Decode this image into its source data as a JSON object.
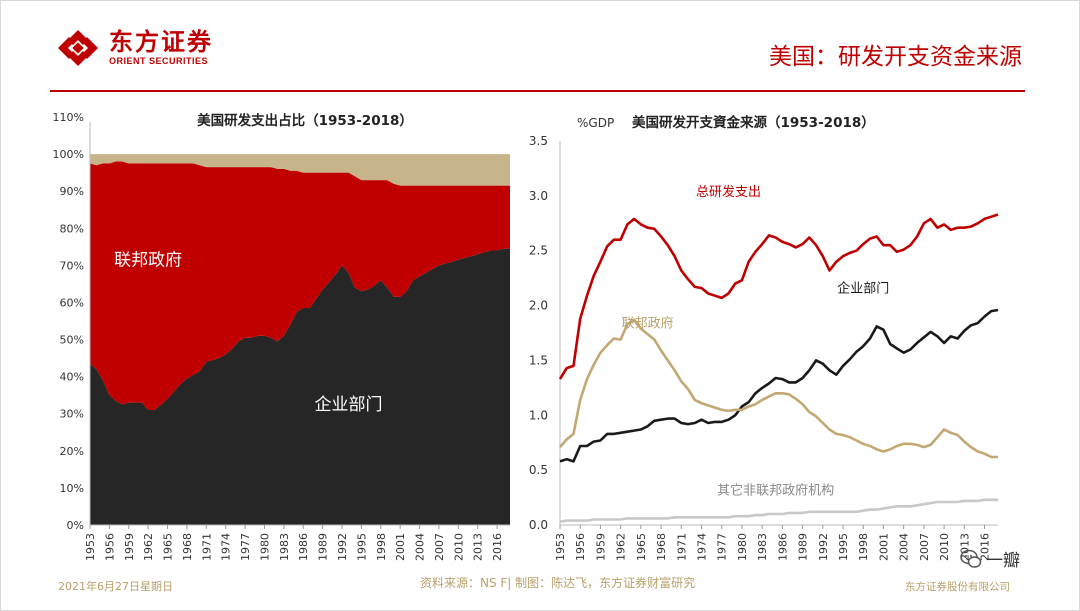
{
  "logo": {
    "cn": "东方证券",
    "en": "ORIENT SECURITIES"
  },
  "page_title": "美国：研发开支资金来源",
  "footer": {
    "date": "2021年6月27日星期日",
    "source": "资料来源：NS F| 制图：陈达飞，东方证券财富研究",
    "company": "东方证券股份有限公司"
  },
  "watermark": {
    "text": "一瓣"
  },
  "colors": {
    "brand_red": "#c00000",
    "federal_red": "#c00000",
    "business_black": "#262626",
    "other_tan": "#c8b48a",
    "federal_line": "#c2a872",
    "other_line": "#c8c8c8",
    "footer_tan": "#b8a06a"
  },
  "chart_data": [
    {
      "type": "area",
      "stacked": true,
      "title": "美国研发支出占比（1953-2018）",
      "xlabel": "",
      "ylabel": "",
      "ylim": [
        0,
        110
      ],
      "y_ticks": [
        "0%",
        "10%",
        "20%",
        "30%",
        "40%",
        "50%",
        "60%",
        "70%",
        "80%",
        "90%",
        "100%",
        "110%"
      ],
      "x_ticks": [
        "1953",
        "1956",
        "1959",
        "1962",
        "1965",
        "1968",
        "1971",
        "1974",
        "1977",
        "1980",
        "1983",
        "1986",
        "1989",
        "1992",
        "1995",
        "1998",
        "2001",
        "2004",
        "2007",
        "2010",
        "2013",
        "2016"
      ],
      "x": [
        1953,
        1954,
        1955,
        1956,
        1957,
        1958,
        1959,
        1960,
        1961,
        1962,
        1963,
        1964,
        1965,
        1966,
        1967,
        1968,
        1969,
        1970,
        1971,
        1972,
        1973,
        1974,
        1975,
        1976,
        1977,
        1978,
        1979,
        1980,
        1981,
        1982,
        1983,
        1984,
        1985,
        1986,
        1987,
        1988,
        1989,
        1990,
        1991,
        1992,
        1993,
        1994,
        1995,
        1996,
        1997,
        1998,
        1999,
        2000,
        2001,
        2002,
        2003,
        2004,
        2005,
        2006,
        2007,
        2008,
        2009,
        2010,
        2011,
        2012,
        2013,
        2014,
        2015,
        2016,
        2017,
        2018
      ],
      "series": [
        {
          "name": "企业部门",
          "values": [
            43.5,
            42,
            39,
            35,
            33.5,
            32.5,
            33,
            33,
            33,
            31,
            31,
            32.5,
            34,
            36,
            38,
            39.5,
            40.5,
            41.5,
            44,
            44.5,
            45,
            46,
            47.5,
            49.5,
            50.5,
            50.5,
            51,
            51,
            50.5,
            49.5,
            51,
            54,
            57.5,
            58.5,
            58.5,
            61,
            63.5,
            65.5,
            67.5,
            70,
            68,
            64,
            63,
            63.5,
            64.5,
            66,
            64,
            61.5,
            61.5,
            63,
            66,
            67,
            68,
            69,
            70,
            70.5,
            71,
            71.5,
            72,
            72.5,
            73,
            73.5,
            74,
            74,
            74.5,
            74.5
          ]
        },
        {
          "name": "联邦政府",
          "values": [
            54,
            55,
            58.5,
            62.5,
            64.5,
            65.5,
            64.5,
            64.5,
            64.5,
            66.5,
            66.5,
            65,
            63.5,
            61.5,
            59.5,
            58,
            57,
            55.5,
            52.5,
            52,
            51.5,
            50.5,
            49,
            47,
            46,
            46,
            45.5,
            45.5,
            46,
            46.5,
            45,
            41.5,
            38,
            36.5,
            36.5,
            34,
            31.5,
            29.5,
            27.5,
            25,
            27,
            30,
            30,
            29.5,
            28.5,
            27,
            29,
            30.5,
            30,
            28.5,
            25.5,
            24.5,
            23.5,
            22.5,
            21.5,
            21,
            20.5,
            20,
            19.5,
            19,
            18.5,
            18,
            17.5,
            17.5,
            17,
            17
          ]
        },
        {
          "name": "其它",
          "values": [
            2.5,
            3,
            2.5,
            2.5,
            2,
            2,
            2.5,
            2.5,
            2.5,
            2.5,
            2.5,
            2.5,
            2.5,
            2.5,
            2.5,
            2.5,
            2.5,
            3,
            3.5,
            3.5,
            3.5,
            3.5,
            3.5,
            3.5,
            3.5,
            3.5,
            3.5,
            3.5,
            3.5,
            4,
            4,
            4.5,
            4.5,
            5,
            5,
            5,
            5,
            5,
            5,
            5,
            5,
            6,
            7,
            7,
            7,
            7,
            7,
            8,
            8.5,
            8.5,
            8.5,
            8.5,
            8.5,
            8.5,
            8.5,
            8.5,
            8.5,
            8.5,
            8.5,
            8.5,
            8.5,
            8.5,
            8.5,
            8.5,
            8.5,
            8.5
          ]
        }
      ],
      "annotations": [
        {
          "text": "联邦政府",
          "x": 1962,
          "y": 70
        },
        {
          "text": "企业部门",
          "x": 1993,
          "y": 31
        }
      ]
    },
    {
      "type": "line",
      "title": "美国研发开支資金来源（1953-2018）",
      "ylabel": "%GDP",
      "xlabel": "",
      "ylim": [
        0,
        3.5
      ],
      "y_ticks": [
        "0.0",
        "0.5",
        "1.0",
        "1.5",
        "2.0",
        "2.5",
        "3.0",
        "3.5"
      ],
      "x_ticks": [
        "1953",
        "1956",
        "1959",
        "1962",
        "1965",
        "1968",
        "1971",
        "1974",
        "1977",
        "1980",
        "1983",
        "1986",
        "1989",
        "1992",
        "1995",
        "1998",
        "2001",
        "2004",
        "2007",
        "2010",
        "2013",
        "2016"
      ],
      "x": [
        1953,
        1954,
        1955,
        1956,
        1957,
        1958,
        1959,
        1960,
        1961,
        1962,
        1963,
        1964,
        1965,
        1966,
        1967,
        1968,
        1969,
        1970,
        1971,
        1972,
        1973,
        1974,
        1975,
        1976,
        1977,
        1978,
        1979,
        1980,
        1981,
        1982,
        1983,
        1984,
        1985,
        1986,
        1987,
        1988,
        1989,
        1990,
        1991,
        1992,
        1993,
        1994,
        1995,
        1996,
        1997,
        1998,
        1999,
        2000,
        2001,
        2002,
        2003,
        2004,
        2005,
        2006,
        2007,
        2008,
        2009,
        2010,
        2011,
        2012,
        2013,
        2014,
        2015,
        2016,
        2017,
        2018
      ],
      "series": [
        {
          "name": "总研发支出",
          "values": [
            1.33,
            1.43,
            1.45,
            1.88,
            2.09,
            2.27,
            2.4,
            2.54,
            2.6,
            2.6,
            2.74,
            2.79,
            2.74,
            2.71,
            2.7,
            2.63,
            2.55,
            2.45,
            2.32,
            2.24,
            2.17,
            2.16,
            2.11,
            2.09,
            2.07,
            2.11,
            2.2,
            2.23,
            2.4,
            2.49,
            2.56,
            2.64,
            2.62,
            2.58,
            2.56,
            2.53,
            2.56,
            2.62,
            2.55,
            2.45,
            2.32,
            2.4,
            2.45,
            2.48,
            2.5,
            2.56,
            2.61,
            2.63,
            2.55,
            2.55,
            2.49,
            2.51,
            2.55,
            2.63,
            2.75,
            2.79,
            2.71,
            2.74,
            2.69,
            2.71,
            2.71,
            2.72,
            2.75,
            2.79,
            2.81,
            2.83
          ]
        },
        {
          "name": "企业部门",
          "values": [
            0.58,
            0.6,
            0.58,
            0.72,
            0.72,
            0.76,
            0.77,
            0.83,
            0.83,
            0.84,
            0.85,
            0.86,
            0.87,
            0.9,
            0.95,
            0.96,
            0.97,
            0.97,
            0.93,
            0.92,
            0.93,
            0.96,
            0.93,
            0.94,
            0.94,
            0.96,
            1.0,
            1.08,
            1.12,
            1.2,
            1.25,
            1.29,
            1.34,
            1.33,
            1.3,
            1.3,
            1.34,
            1.41,
            1.5,
            1.47,
            1.41,
            1.37,
            1.45,
            1.51,
            1.58,
            1.63,
            1.7,
            1.81,
            1.78,
            1.65,
            1.61,
            1.57,
            1.6,
            1.66,
            1.71,
            1.76,
            1.72,
            1.66,
            1.72,
            1.7,
            1.77,
            1.82,
            1.84,
            1.9,
            1.95,
            1.96
          ]
        },
        {
          "name": "联邦政府",
          "values": [
            0.71,
            0.78,
            0.83,
            1.14,
            1.33,
            1.46,
            1.57,
            1.64,
            1.7,
            1.69,
            1.83,
            1.87,
            1.79,
            1.74,
            1.69,
            1.59,
            1.5,
            1.41,
            1.31,
            1.24,
            1.14,
            1.11,
            1.09,
            1.07,
            1.05,
            1.04,
            1.05,
            1.05,
            1.08,
            1.1,
            1.14,
            1.17,
            1.2,
            1.2,
            1.19,
            1.15,
            1.1,
            1.03,
            0.99,
            0.93,
            0.87,
            0.83,
            0.82,
            0.8,
            0.77,
            0.74,
            0.72,
            0.69,
            0.67,
            0.69,
            0.72,
            0.74,
            0.74,
            0.73,
            0.71,
            0.73,
            0.8,
            0.87,
            0.84,
            0.82,
            0.76,
            0.71,
            0.67,
            0.65,
            0.62,
            0.62
          ]
        },
        {
          "name": "其它非联邦政府机构",
          "values": [
            0.03,
            0.04,
            0.04,
            0.04,
            0.04,
            0.05,
            0.05,
            0.05,
            0.05,
            0.05,
            0.06,
            0.06,
            0.06,
            0.06,
            0.06,
            0.06,
            0.06,
            0.07,
            0.07,
            0.07,
            0.07,
            0.07,
            0.07,
            0.07,
            0.07,
            0.07,
            0.08,
            0.08,
            0.08,
            0.09,
            0.09,
            0.1,
            0.1,
            0.1,
            0.11,
            0.11,
            0.11,
            0.12,
            0.12,
            0.12,
            0.12,
            0.12,
            0.12,
            0.12,
            0.12,
            0.13,
            0.14,
            0.14,
            0.15,
            0.16,
            0.17,
            0.17,
            0.17,
            0.18,
            0.19,
            0.2,
            0.21,
            0.21,
            0.21,
            0.21,
            0.22,
            0.22,
            0.22,
            0.23,
            0.23,
            0.23
          ]
        }
      ],
      "annotations": [
        {
          "text": "总研发支出",
          "x": 1978,
          "y": 3.0
        },
        {
          "text": "企业部门",
          "x": 1998,
          "y": 2.12
        },
        {
          "text": "联邦政府",
          "x": 1966,
          "y": 1.8
        },
        {
          "text": "其它非联邦政府机构",
          "x": 1985,
          "y": 0.28
        }
      ]
    }
  ]
}
